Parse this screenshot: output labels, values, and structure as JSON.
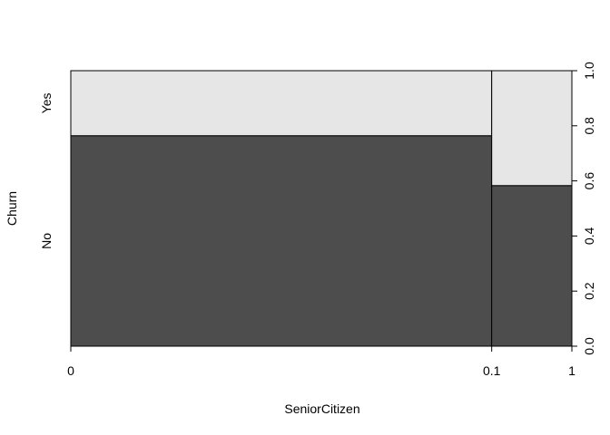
{
  "chart_data": {
    "type": "spineplot",
    "xlabel": "SeniorCitizen",
    "ylabel": "Churn",
    "x_breaks": [
      0,
      0.1,
      1
    ],
    "x_tick_labels": [
      "0",
      "0.1",
      "1"
    ],
    "bins": [
      {
        "range": [
          0,
          0.1
        ],
        "proportion_of_total": 0.84,
        "No": 0.764,
        "Yes": 0.236
      },
      {
        "range": [
          0.1,
          1
        ],
        "proportion_of_total": 0.16,
        "No": 0.583,
        "Yes": 0.417
      }
    ],
    "y_categories": [
      "No",
      "Yes"
    ],
    "y_category_label_positions": [
      0.382,
      0.882
    ],
    "right_axis": {
      "range": [
        0,
        1
      ],
      "ticks": [
        "0.0",
        "0.2",
        "0.4",
        "0.6",
        "0.8",
        "1.0"
      ]
    },
    "colors": {
      "No": "#4d4d4d",
      "Yes": "#e6e6e6",
      "border": "#000000"
    }
  }
}
